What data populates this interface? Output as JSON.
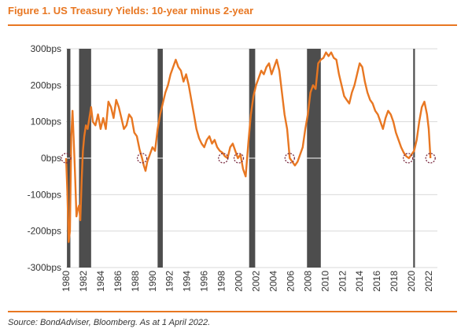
{
  "figure": {
    "title": "Figure 1. US Treasury Yields: 10-year minus 2-year",
    "source": "Source: BondAdviser, Bloomberg. As at 1 April 2022."
  },
  "colors": {
    "accent": "#e87722",
    "line": "#e87722",
    "recession": "#4d4d4d",
    "grid": "#d9d9d9",
    "marker": "#7b2d42"
  },
  "chart_data": {
    "type": "line",
    "title": "",
    "xlabel": "",
    "ylabel": "",
    "xlim": [
      1980,
      2023
    ],
    "ylim": [
      -300,
      300
    ],
    "grid": true,
    "legend": "none",
    "y_ticks": [
      300,
      200,
      100,
      0,
      -100,
      -200,
      -300
    ],
    "y_tick_labels": [
      "300bps",
      "200bps",
      "100bps",
      "0bps",
      "-100bps",
      "-200bps",
      "-300bps"
    ],
    "x_ticks": [
      1980,
      1982,
      1984,
      1986,
      1988,
      1990,
      1992,
      1994,
      1996,
      1998,
      2000,
      2002,
      2004,
      2006,
      2008,
      2010,
      2012,
      2014,
      2016,
      2018,
      2020,
      2022
    ],
    "x_tick_labels": [
      "1980",
      "1982",
      "1984",
      "1986",
      "1988",
      "1990",
      "1992",
      "1994",
      "1996",
      "1998",
      "2000",
      "2002",
      "2004",
      "2006",
      "2008",
      "2010",
      "2012",
      "2014",
      "2016",
      "2018",
      "2020",
      "2022"
    ],
    "recessions": [
      {
        "start": 1980.1,
        "end": 1980.5
      },
      {
        "start": 1981.5,
        "end": 1982.9
      },
      {
        "start": 1990.6,
        "end": 1991.2
      },
      {
        "start": 2001.2,
        "end": 2001.9
      },
      {
        "start": 2007.9,
        "end": 2009.5
      },
      {
        "start": 2020.2,
        "end": 2020.4
      }
    ],
    "inversion_markers": [
      {
        "x": 1980.0,
        "y": 0
      },
      {
        "x": 1988.8,
        "y": 0
      },
      {
        "x": 1998.2,
        "y": 0
      },
      {
        "x": 2000.0,
        "y": 0
      },
      {
        "x": 2005.9,
        "y": 0
      },
      {
        "x": 2019.6,
        "y": 0
      },
      {
        "x": 2022.2,
        "y": 0
      }
    ],
    "series": [
      {
        "x": [
          1980.0,
          1980.15,
          1980.3,
          1980.45,
          1980.6,
          1980.75,
          1980.9,
          1981.05,
          1981.2,
          1981.35,
          1981.5,
          1981.65,
          1981.8,
          1981.95,
          1982.1,
          1982.3,
          1982.5,
          1982.7,
          1982.9,
          1983.1,
          1983.4,
          1983.7,
          1984.0,
          1984.3,
          1984.6,
          1984.9,
          1985.2,
          1985.5,
          1985.8,
          1986.1,
          1986.4,
          1986.7,
          1987.0,
          1987.3,
          1987.6,
          1987.9,
          1988.2,
          1988.5,
          1988.8,
          1989.0,
          1989.2,
          1989.4,
          1989.7,
          1990.0,
          1990.3,
          1990.6,
          1990.9,
          1991.2,
          1991.5,
          1991.8,
          1992.1,
          1992.4,
          1992.7,
          1993.0,
          1993.3,
          1993.6,
          1993.9,
          1994.2,
          1994.5,
          1994.8,
          1995.1,
          1995.4,
          1995.7,
          1996.0,
          1996.3,
          1996.6,
          1996.9,
          1997.2,
          1997.5,
          1997.8,
          1998.1,
          1998.4,
          1998.7,
          1999.0,
          1999.3,
          1999.6,
          1999.9,
          2000.2,
          2000.5,
          2000.8,
          2001.1,
          2001.4,
          2001.7,
          2002.0,
          2002.3,
          2002.6,
          2002.9,
          2003.2,
          2003.5,
          2003.8,
          2004.1,
          2004.4,
          2004.7,
          2005.0,
          2005.3,
          2005.6,
          2005.9,
          2006.2,
          2006.5,
          2006.8,
          2007.1,
          2007.4,
          2007.7,
          2008.0,
          2008.3,
          2008.6,
          2008.9,
          2009.2,
          2009.5,
          2009.8,
          2010.1,
          2010.4,
          2010.7,
          2011.0,
          2011.3,
          2011.6,
          2011.9,
          2012.2,
          2012.5,
          2012.8,
          2013.1,
          2013.4,
          2013.7,
          2014.0,
          2014.3,
          2014.6,
          2014.9,
          2015.2,
          2015.5,
          2015.8,
          2016.1,
          2016.4,
          2016.7,
          2017.0,
          2017.3,
          2017.6,
          2017.9,
          2018.2,
          2018.5,
          2018.8,
          2019.1,
          2019.4,
          2019.7,
          2020.0,
          2020.3,
          2020.6,
          2020.9,
          2021.2,
          2021.5,
          2021.8,
          2022.0,
          2022.2
        ],
        "values": [
          0,
          -90,
          -230,
          -200,
          60,
          130,
          40,
          -50,
          -160,
          -140,
          -130,
          -170,
          -60,
          20,
          60,
          90,
          80,
          110,
          140,
          100,
          90,
          120,
          80,
          110,
          80,
          155,
          140,
          110,
          160,
          140,
          110,
          80,
          90,
          120,
          110,
          70,
          60,
          25,
          0,
          -20,
          -35,
          -10,
          10,
          30,
          20,
          80,
          120,
          150,
          180,
          200,
          230,
          250,
          270,
          250,
          240,
          210,
          230,
          200,
          160,
          120,
          80,
          55,
          40,
          30,
          50,
          60,
          40,
          50,
          30,
          20,
          15,
          5,
          0,
          30,
          40,
          20,
          0,
          10,
          -30,
          -50,
          40,
          120,
          170,
          200,
          220,
          240,
          230,
          250,
          260,
          230,
          250,
          270,
          240,
          180,
          120,
          80,
          0,
          -10,
          -20,
          -10,
          10,
          30,
          80,
          120,
          180,
          200,
          190,
          260,
          270,
          275,
          290,
          280,
          290,
          275,
          270,
          230,
          200,
          170,
          160,
          150,
          180,
          200,
          230,
          260,
          250,
          210,
          180,
          160,
          150,
          130,
          120,
          100,
          80,
          110,
          130,
          120,
          100,
          70,
          50,
          30,
          15,
          5,
          0,
          10,
          20,
          50,
          100,
          140,
          155,
          120,
          80,
          0
        ]
      }
    ]
  }
}
